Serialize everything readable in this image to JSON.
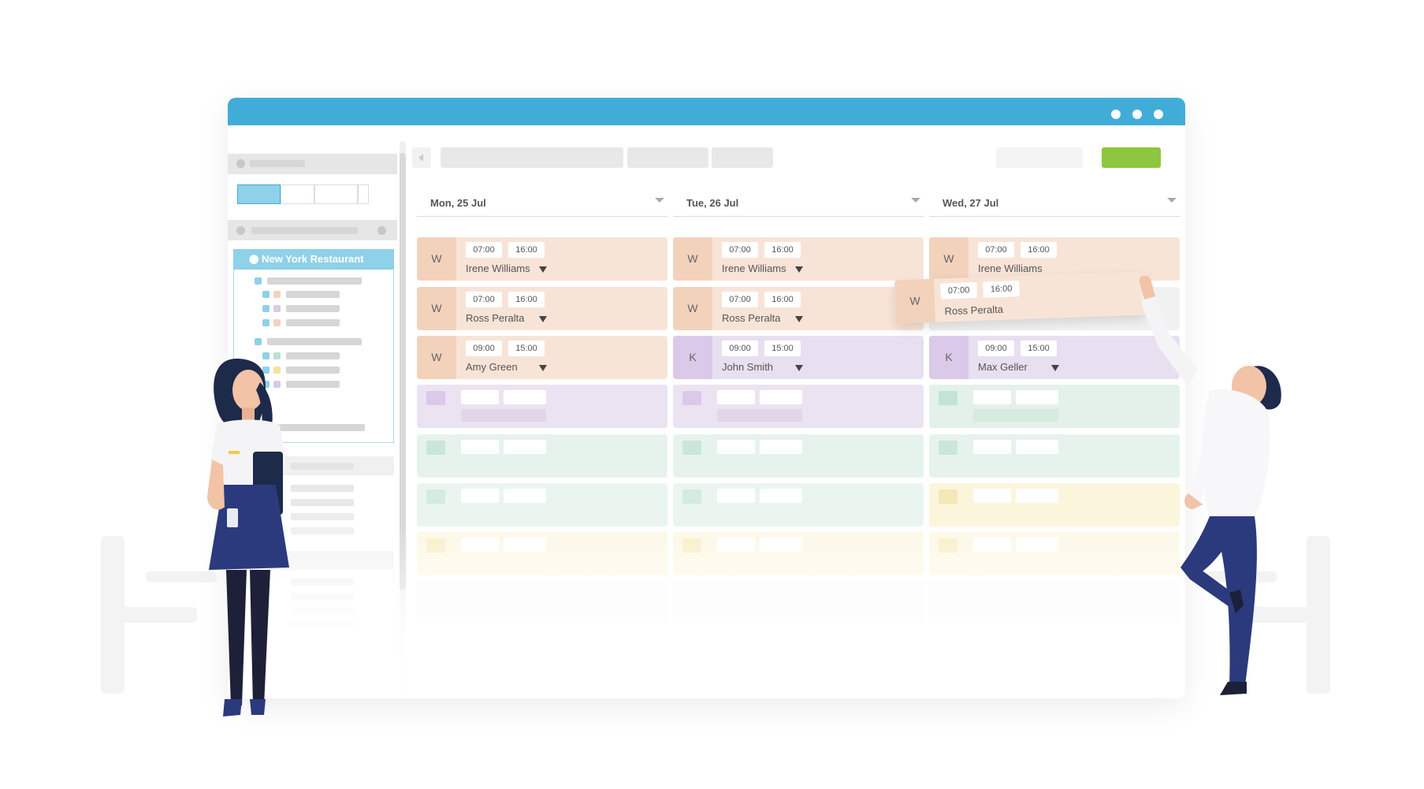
{
  "colors": {
    "titlebar": "#42acd9",
    "add_button": "#8dc63f",
    "location_highlight": "#8fd1e8",
    "shift_orange": "#f8e4d7",
    "shift_purple": "#e8dff0",
    "shift_green": "#e3f1ea",
    "shift_yellow": "#fbf5dc"
  },
  "window": {
    "controls": [
      "dot-icon",
      "dot-icon",
      "dot-icon"
    ]
  },
  "sidebar": {
    "location_label": "New York Restaurant"
  },
  "days": [
    {
      "label": "Mon, 25 Jul",
      "shifts": [
        {
          "role": "W",
          "start": "07:00",
          "end": "16:00",
          "employee": "Irene Williams",
          "color": "orange"
        },
        {
          "role": "W",
          "start": "07:00",
          "end": "16:00",
          "employee": "Ross Peralta",
          "color": "orange"
        },
        {
          "role": "W",
          "start": "09:00",
          "end": "15:00",
          "employee": "Amy Green",
          "color": "orange"
        }
      ]
    },
    {
      "label": "Tue, 26 Jul",
      "shifts": [
        {
          "role": "W",
          "start": "07:00",
          "end": "16:00",
          "employee": "Irene Williams",
          "color": "orange"
        },
        {
          "role": "W",
          "start": "07:00",
          "end": "16:00",
          "employee": "Ross Peralta",
          "color": "orange"
        },
        {
          "role": "K",
          "start": "09:00",
          "end": "15:00",
          "employee": "John Smith",
          "color": "purple"
        }
      ]
    },
    {
      "label": "Wed, 27 Jul",
      "shifts": [
        {
          "role": "W",
          "start": "07:00",
          "end": "16:00",
          "employee": "Irene Williams",
          "color": "orange"
        },
        {
          "role": "K",
          "start": "09:00",
          "end": "15:00",
          "employee": "Max Geller",
          "color": "purple"
        }
      ]
    }
  ],
  "dragged_shift": {
    "role": "W",
    "start": "07:00",
    "end": "16:00",
    "employee": "Ross Peralta"
  }
}
